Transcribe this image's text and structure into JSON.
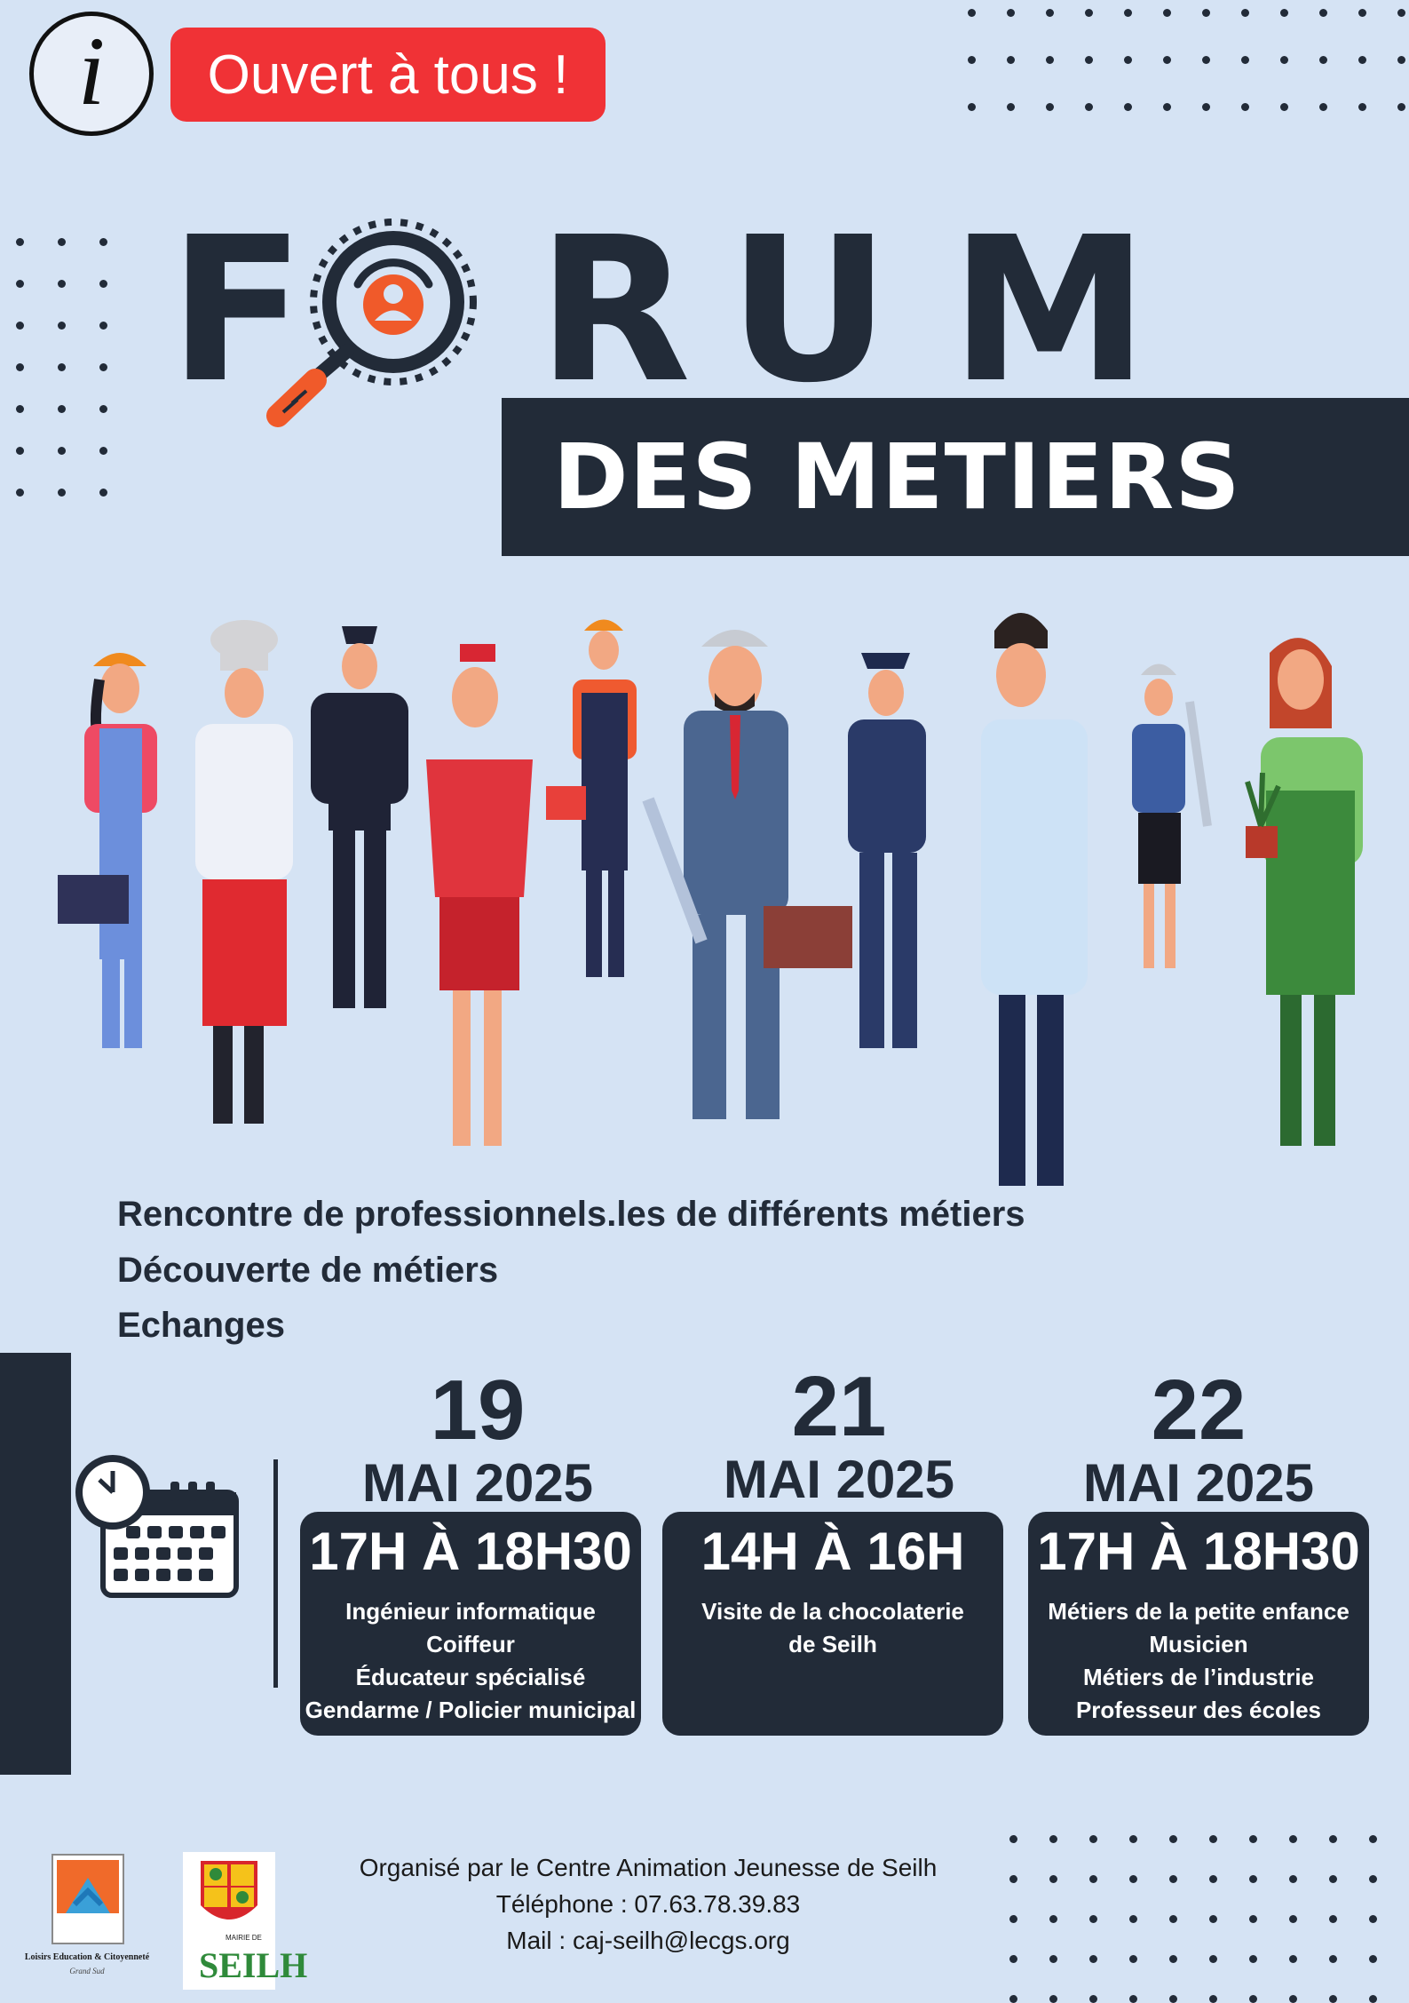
{
  "header": {
    "info_icon": "info-icon",
    "badge_text": "Ouvert à tous !"
  },
  "title": {
    "forum_letters": [
      "F",
      "R",
      "U",
      "M"
    ],
    "subtitle": "DES METIERS"
  },
  "highlights": [
    "Rencontre de professionnels.les de différents métiers",
    "Découverte de métiers",
    "Echanges"
  ],
  "schedule": [
    {
      "day": "19",
      "month": "MAI 2025",
      "time": "17H À 18H30",
      "items": [
        "Ingénieur informatique",
        "Coiffeur",
        "Éducateur spécialisé",
        "Gendarme / Policier municipal"
      ]
    },
    {
      "day": "21",
      "month": "MAI 2025",
      "time": "14H À 16H",
      "items": [
        "Visite de la chocolaterie",
        "de Seilh"
      ]
    },
    {
      "day": "22",
      "month": "MAI 2025",
      "time": "17H À 18H30",
      "items": [
        "Métiers de la petite enfance",
        "Musicien",
        "Métiers de l’industrie",
        "Professeur des écoles"
      ]
    }
  ],
  "footer": {
    "organizer": "Organisé par le Centre Animation Jeunesse de Seilh",
    "phone": "Téléphone : 07.63.78.39.83",
    "mail": "Mail  : caj-seilh@lecgs.org",
    "logo1_line1": "Loisirs Education & Citoyenneté",
    "logo1_line2": "Grand Sud",
    "logo2_top": "MAIRIE DE",
    "logo2_name": "SEILH"
  },
  "colors": {
    "background": "#d5e3f4",
    "navy": "#222b38",
    "red": "#f03236",
    "orange": "#f05a2a"
  }
}
